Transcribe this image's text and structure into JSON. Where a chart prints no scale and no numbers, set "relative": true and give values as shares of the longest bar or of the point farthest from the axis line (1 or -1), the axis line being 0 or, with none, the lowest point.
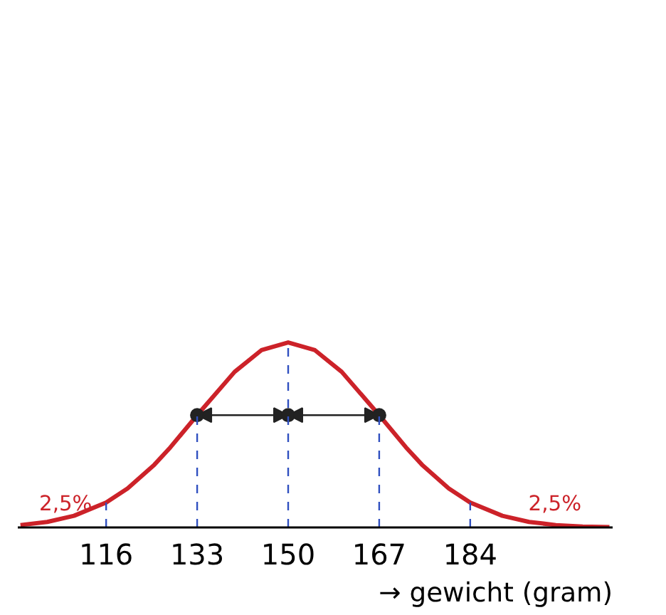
{
  "chart_data": {
    "type": "line",
    "relative": true,
    "xlabel": "→ gewicht (gram)",
    "xlim": [
      99.5,
      210.6
    ],
    "xticks": [
      116,
      133,
      150,
      167,
      184
    ],
    "grid": false,
    "series": [
      {
        "color": "#cc2229",
        "line_style": "solid",
        "marker": "none",
        "x": [
          100,
          105,
          110,
          116,
          120,
          125,
          128,
          133,
          140,
          145,
          150,
          155,
          160,
          167,
          172,
          175,
          180,
          184,
          190,
          195,
          200,
          205,
          210
        ],
        "values": [
          0.013,
          0.03,
          0.063,
          0.135,
          0.211,
          0.339,
          0.433,
          0.607,
          0.841,
          0.958,
          1,
          0.958,
          0.841,
          0.607,
          0.433,
          0.339,
          0.211,
          0.135,
          0.063,
          0.03,
          0.013,
          0.005,
          0.002
        ]
      },
      {
        "type": "scatter",
        "color": "#222222",
        "marker": "circle",
        "x": [
          133,
          150,
          167
        ],
        "values": [
          0.607,
          0.607,
          0.607
        ]
      }
    ],
    "ref_lines": [
      {
        "axis": "x",
        "value": 116,
        "color": "#3050c0",
        "line_style": "dashed"
      },
      {
        "axis": "x",
        "value": 133,
        "color": "#3050c0",
        "line_style": "dashed"
      },
      {
        "axis": "x",
        "value": 150,
        "color": "#3050c0",
        "line_style": "dashed"
      },
      {
        "axis": "x",
        "value": 167,
        "color": "#3050c0",
        "line_style": "dashed"
      },
      {
        "axis": "x",
        "value": 184,
        "color": "#3050c0",
        "line_style": "dashed"
      }
    ],
    "annotations": [
      "2,5%",
      "2,5%"
    ]
  }
}
